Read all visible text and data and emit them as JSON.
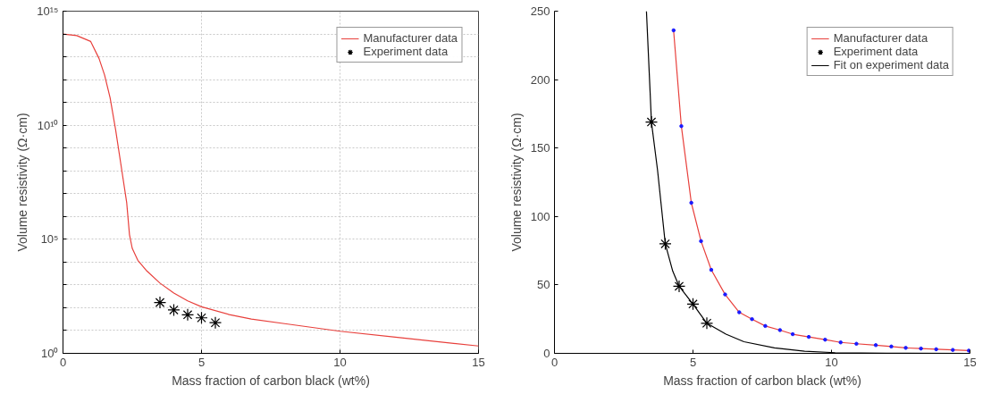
{
  "chart_data": [
    {
      "type": "line",
      "xlabel": "Mass fraction of carbon black (wt%)",
      "ylabel": "Volume resistivity (Ω·cm)",
      "log": "y",
      "grid": true,
      "legend": "top right",
      "xlim": [
        0,
        15
      ],
      "ylim": [
        1,
        1000000000000000
      ],
      "xticks": [
        0,
        5,
        10,
        15
      ],
      "yticks": [
        {
          "value": 1,
          "label": "10⁰"
        },
        {
          "value": 10,
          "label": null
        },
        {
          "value": 100,
          "label": null
        },
        {
          "value": 1000,
          "label": null
        },
        {
          "value": 10000,
          "label": null
        },
        {
          "value": 100000,
          "label": "10⁵"
        },
        {
          "value": 1000000,
          "label": null
        },
        {
          "value": 10000000,
          "label": null
        },
        {
          "value": 100000000,
          "label": null
        },
        {
          "value": 1000000000,
          "label": null
        },
        {
          "value": 10000000000,
          "label": "10¹⁰"
        },
        {
          "value": 100000000000,
          "label": null
        },
        {
          "value": 1000000000000,
          "label": null
        },
        {
          "value": 10000000000000,
          "label": null
        },
        {
          "value": 100000000000000,
          "label": null
        },
        {
          "value": 1000000000000000,
          "label": "10¹⁵"
        }
      ],
      "series": [
        {
          "name": "Manufacturer data",
          "color": "#e8403c",
          "x": [
            0,
            0.5,
            1.0,
            1.3,
            1.5,
            1.7,
            1.9,
            2.1,
            2.3,
            2.4,
            2.5,
            2.7,
            3.0,
            3.5,
            4,
            4.5,
            5,
            6,
            6.8,
            8,
            10,
            12,
            15
          ],
          "values": [
            100000000000000.0,
            85000000000000.0,
            47000000000000.0,
            8500000000000.0,
            1600000000000.0,
            160000000000.0,
            6300000000.0,
            160000000.0,
            4000000.0,
            160000.0,
            40000.0,
            12000.0,
            4400,
            1200,
            440,
            200,
            110,
            50,
            32,
            20,
            9.3,
            5.1,
            2.1
          ]
        },
        {
          "name": "Experiment data",
          "type": "scatter",
          "marker": "cross",
          "color": "#000000",
          "x": [
            3.5,
            4,
            4.5,
            5,
            5.5
          ],
          "values": [
            169,
            80,
            49,
            36,
            22
          ]
        }
      ]
    },
    {
      "type": "line",
      "xlabel": "Mass fraction of carbon black (wt%)",
      "ylabel": "Volume resistivity (Ω·cm)",
      "legend": "top right",
      "xlim": [
        0,
        15
      ],
      "ylim": [
        0,
        250
      ],
      "xticks": [
        0,
        5,
        10,
        15
      ],
      "yticks": [
        0,
        50,
        100,
        150,
        200,
        250
      ],
      "series": [
        {
          "name": "Manufacturer data",
          "color": "#e8403c",
          "x": [
            4.3,
            4.58,
            4.94,
            5.29,
            5.66,
            6.16,
            6.67,
            7.13,
            7.61,
            8.14,
            8.6,
            9.18,
            9.77,
            10.33,
            10.9,
            11.6,
            12.16,
            12.68,
            13.23,
            13.78,
            14.38,
            14.96
          ],
          "values": [
            236,
            166,
            110,
            82,
            61,
            43,
            30,
            25,
            20,
            17,
            14,
            12,
            10,
            8,
            7,
            6,
            5,
            4,
            3.5,
            3,
            2.5,
            2
          ]
        },
        {
          "type": "scatter",
          "marker": "circle",
          "color": "#1a1aff",
          "x": [
            4.3,
            4.58,
            4.94,
            5.29,
            5.66,
            6.16,
            6.67,
            7.13,
            7.61,
            8.14,
            8.6,
            9.18,
            9.77,
            10.33,
            10.9,
            11.6,
            12.16,
            12.68,
            13.23,
            13.78,
            14.38,
            14.96
          ],
          "values": [
            236,
            166,
            110,
            82,
            61,
            43,
            30,
            25,
            20,
            17,
            14,
            12,
            10,
            8,
            7,
            6,
            5,
            4,
            3.5,
            3,
            2.5,
            2
          ]
        },
        {
          "name": "Experiment data",
          "type": "scatter",
          "marker": "cross",
          "color": "#000000",
          "x": [
            3.5,
            4,
            4.5,
            5,
            5.5
          ],
          "values": [
            169,
            80,
            49,
            36,
            22
          ]
        },
        {
          "name": "Fit on experiment data",
          "color": "#000000",
          "x": [
            3.32,
            3.45,
            3.5,
            3.72,
            4,
            4.27,
            4.5,
            5,
            5.5,
            6.19,
            6.84,
            7.94,
            9.03,
            10.13,
            12,
            15
          ],
          "values": [
            250,
            192,
            169,
            134,
            80,
            60,
            49,
            36,
            22,
            14,
            8.5,
            4,
            1.6,
            0.5,
            0.1,
            0
          ]
        }
      ]
    }
  ]
}
